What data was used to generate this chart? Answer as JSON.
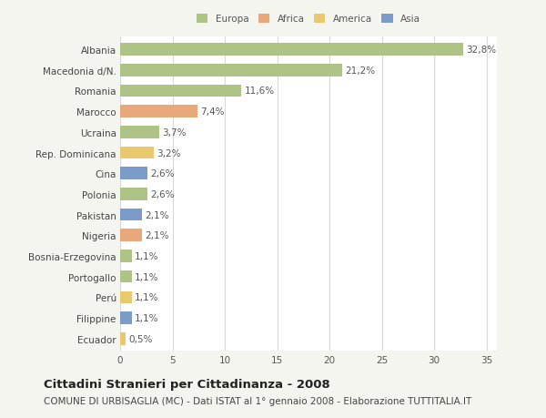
{
  "categories": [
    "Albania",
    "Macedonia d/N.",
    "Romania",
    "Marocco",
    "Ucraina",
    "Rep. Dominicana",
    "Cina",
    "Polonia",
    "Pakistan",
    "Nigeria",
    "Bosnia-Erzegovina",
    "Portogallo",
    "Perú",
    "Filippine",
    "Ecuador"
  ],
  "values": [
    32.8,
    21.2,
    11.6,
    7.4,
    3.7,
    3.2,
    2.6,
    2.6,
    2.1,
    2.1,
    1.1,
    1.1,
    1.1,
    1.1,
    0.5
  ],
  "labels": [
    "32,8%",
    "21,2%",
    "11,6%",
    "7,4%",
    "3,7%",
    "3,2%",
    "2,6%",
    "2,6%",
    "2,1%",
    "2,1%",
    "1,1%",
    "1,1%",
    "1,1%",
    "1,1%",
    "0,5%"
  ],
  "colors": [
    "#aec486",
    "#aec486",
    "#aec486",
    "#e8a87c",
    "#aec486",
    "#e8c96e",
    "#7b9cc9",
    "#aec486",
    "#7b9cc9",
    "#e8a87c",
    "#aec486",
    "#aec486",
    "#e8c96e",
    "#7b9cc9",
    "#e8c96e"
  ],
  "legend_labels": [
    "Europa",
    "Africa",
    "America",
    "Asia"
  ],
  "legend_colors": [
    "#aec486",
    "#e8a87c",
    "#e8c96e",
    "#7b9cc9"
  ],
  "title": "Cittadini Stranieri per Cittadinanza - 2008",
  "subtitle": "COMUNE DI URBISAGLIA (MC) - Dati ISTAT al 1° gennaio 2008 - Elaborazione TUTTITALIA.IT",
  "xlim": [
    0,
    36
  ],
  "xticks": [
    0,
    5,
    10,
    15,
    20,
    25,
    30,
    35
  ],
  "bg_color": "#f5f5f0",
  "plot_bg_color": "#ffffff",
  "grid_color": "#d8d8d8",
  "title_fontsize": 9.5,
  "subtitle_fontsize": 7.5,
  "label_fontsize": 7.5,
  "tick_fontsize": 7.5,
  "bar_height": 0.6
}
